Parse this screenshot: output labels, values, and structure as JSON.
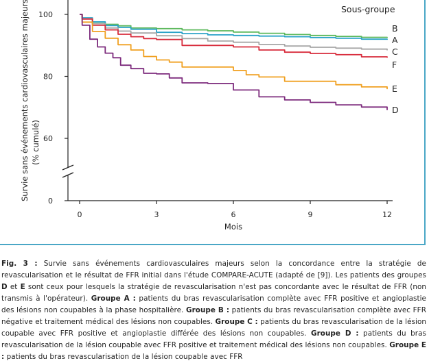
{
  "chart_data": {
    "type": "line",
    "title": "",
    "xlabel": "Mois",
    "ylabel": "Survie sans événements cardiovasculaires majeurs (% cumulé)",
    "ylabel_line1": "Survie sans événements cardiovasculaires majeurs",
    "ylabel_line2": "(% cumulé)",
    "xlim": [
      0,
      12
    ],
    "ylim": [
      0,
      100
    ],
    "y_axis_break": true,
    "x_ticks": [
      0,
      3,
      6,
      9,
      12
    ],
    "y_ticks": [
      0,
      60,
      80,
      100
    ],
    "legend_title": "Sous-groupe",
    "legend_position": "top-right",
    "series": [
      {
        "name": "B",
        "color": "#5cb85c",
        "x": [
          0,
          0.1,
          0.5,
          1,
          1.5,
          2,
          3,
          4,
          5,
          6,
          7,
          8,
          9,
          10,
          11,
          12
        ],
        "y": [
          100,
          98.8,
          97.5,
          96.8,
          96.3,
          95.6,
          95.4,
          95.0,
          94.7,
          94.3,
          93.9,
          93.5,
          93.2,
          92.9,
          92.6,
          92.4
        ]
      },
      {
        "name": "A",
        "color": "#2aa2c8",
        "x": [
          0,
          0.1,
          0.5,
          1,
          1.5,
          2,
          3,
          4,
          5,
          6,
          7,
          8,
          9,
          10,
          11,
          12
        ],
        "y": [
          100,
          98.9,
          97.6,
          96.4,
          95.8,
          95.2,
          94.2,
          93.8,
          93.4,
          93.2,
          93.0,
          92.8,
          92.5,
          92.3,
          92.0,
          91.8
        ]
      },
      {
        "name": "C",
        "color": "#a6a6a6",
        "x": [
          0,
          0.1,
          0.5,
          1,
          1.5,
          2,
          3,
          4,
          5,
          6,
          7,
          8,
          9,
          10,
          11,
          12
        ],
        "y": [
          100,
          98.6,
          97.0,
          95.6,
          94.6,
          94.0,
          93.1,
          92.2,
          91.4,
          91.0,
          90.3,
          89.8,
          89.4,
          89.1,
          88.8,
          88.4
        ]
      },
      {
        "name": "F",
        "color": "#d82c3c",
        "x": [
          0,
          0.1,
          0.5,
          1,
          1.5,
          2,
          2.5,
          3,
          4,
          5,
          6,
          7,
          8,
          9,
          10,
          11,
          12
        ],
        "y": [
          100,
          98.5,
          96.5,
          95.0,
          93.6,
          92.8,
          92.2,
          91.9,
          90.0,
          90.0,
          89.5,
          88.5,
          87.8,
          87.4,
          87.0,
          86.3,
          86.0
        ]
      },
      {
        "name": "E",
        "color": "#f0a020",
        "x": [
          0,
          0.1,
          0.5,
          1,
          1.5,
          2,
          2.5,
          3,
          3.5,
          4,
          5,
          6,
          6.5,
          7,
          8,
          9,
          10,
          11,
          12
        ],
        "y": [
          100,
          97.5,
          94.5,
          92.3,
          90.2,
          88.5,
          86.4,
          85.3,
          84.6,
          83.0,
          83.0,
          81.9,
          80.5,
          79.8,
          78.4,
          78.4,
          77.3,
          76.6,
          75.9
        ]
      },
      {
        "name": "D",
        "color": "#7d2b7d",
        "x": [
          0,
          0.1,
          0.4,
          0.7,
          1,
          1.3,
          1.6,
          2,
          2.5,
          3,
          3.5,
          4,
          5,
          6,
          7,
          8,
          9,
          10,
          11,
          12
        ],
        "y": [
          100,
          96.5,
          92.0,
          89.5,
          87.5,
          86.0,
          83.6,
          82.5,
          81.0,
          80.8,
          79.5,
          77.9,
          77.7,
          75.6,
          73.4,
          72.4,
          71.6,
          70.8,
          70.1,
          69.1
        ]
      }
    ]
  },
  "caption": {
    "fig_label": "Fig. 3 :",
    "text_1": " Survie sans événements cardiovasculaires majeurs selon la concordance entre la stratégie de revascularisation et le résultat de FFR initial dans l'étude COMPARE-ACUTE (adapté de [9]). Les patients des groupes ",
    "bold_D": "D",
    "text_and": " et ",
    "bold_E": "E",
    "text_2": " sont ceux pour lesquels la stratégie de revascularisation n'est pas concordante avec le résultat de FFR (non transmis à l'opérateur). ",
    "group_a_label": "Groupe A :",
    "group_a_text": " patients du bras revascularisation complète avec FFR positive et angioplastie des lésions non coupables à la phase hospitalière. ",
    "group_b_label": "Groupe B :",
    "group_b_text": " patients du bras revascularisation complète avec FFR négative et traitement médical des lésions non coupables. ",
    "group_c_label": "Groupe C :",
    "group_c_text": " patients du bras revascularisation de la lésion coupable avec FFR positive et angioplastie différée des lésions non coupables. ",
    "group_d_label": "Groupe D :",
    "group_d_text": " patients du bras revascularisation de la lésion coupable avec FFR positive et traitement médical des lésions non coupables. ",
    "group_e_label": "Groupe E :",
    "group_e_text": " patients du bras revascularisation de la lésion coupable avec FFR"
  }
}
